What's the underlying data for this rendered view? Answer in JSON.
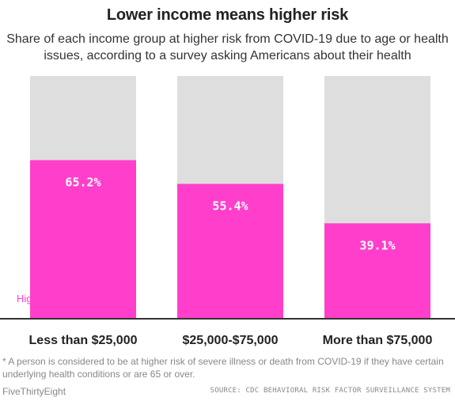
{
  "chart_data": {
    "type": "bar",
    "title": "Lower income means higher risk",
    "subtitle": "Share of each income group at higher risk from COVID-19 due to age or health issues, according to a survey asking Americans about their health",
    "categories": [
      "Less than $25,000",
      "$25,000-$75,000",
      "More than $75,000"
    ],
    "series": [
      {
        "name": "Higher risk*",
        "values": [
          65.2,
          55.4,
          39.1
        ]
      }
    ],
    "value_labels": [
      "65.2%",
      "55.4%",
      "39.1%"
    ],
    "ylim": [
      0,
      100
    ],
    "grid": false,
    "legend": "inline bottom-left",
    "colors": {
      "bar": "#ff3fcb",
      "background_bar": "#dedede",
      "axis": "#333333",
      "label_text": "#ffffff",
      "legend_text": "#ff3fcb"
    }
  },
  "footnote": "* A person is considered to be at higher risk of severe illness or death from COVID-19 if they have certain underlying health conditions or are 65 or over.",
  "brand": "FiveThirtyEight",
  "source": "SOURCE: CDC BEHAVIORAL RISK FACTOR SURVEILLANCE SYSTEM"
}
